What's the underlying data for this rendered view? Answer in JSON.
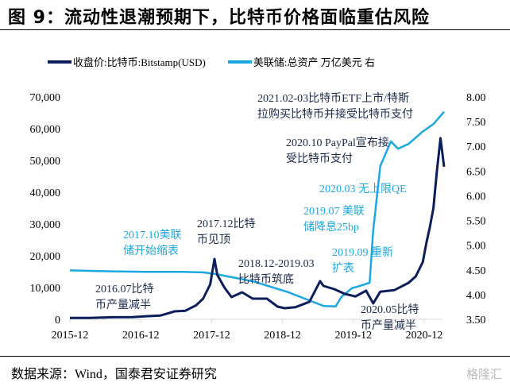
{
  "header": {
    "title": "图 9：流动性退潮预期下，比特币价格面临重估风险"
  },
  "footer": {
    "source": "数据来源：Wind，国泰君安证券研究",
    "watermark": "格隆汇"
  },
  "colors": {
    "btc": "#0B1E5B",
    "fed": "#1BA8E0",
    "grid": "#d9d9d9"
  },
  "chart_data": {
    "type": "line",
    "title": "图 9：流动性退潮预期下，比特币价格面临重估风险",
    "legend_position": "top",
    "x_ticks": [
      "2015-12",
      "2016-12",
      "2017-12",
      "2018-12",
      "2019-12",
      "2020-12"
    ],
    "y_left": {
      "range": [
        0,
        70000
      ],
      "ticks": [
        "0",
        "10,000",
        "20,000",
        "30,000",
        "40,000",
        "50,000",
        "60,000",
        "70,000"
      ]
    },
    "y_right": {
      "range": [
        3.5,
        8.0
      ],
      "ticks": [
        "3.50",
        "4.00",
        "4.50",
        "5.00",
        "5.50",
        "6.00",
        "6.50",
        "7.00",
        "7.50",
        "8.00"
      ]
    },
    "series": [
      {
        "name": "收盘价:比特币:Bitstamp(USD)",
        "axis": "left",
        "x": [
          2015.92,
          2016.2,
          2016.5,
          2016.8,
          2017.0,
          2017.2,
          2017.4,
          2017.55,
          2017.7,
          2017.8,
          2017.9,
          2017.96,
          2018.0,
          2018.1,
          2018.2,
          2018.35,
          2018.5,
          2018.7,
          2018.85,
          2018.95,
          2019.1,
          2019.3,
          2019.45,
          2019.5,
          2019.65,
          2019.8,
          2019.95,
          2020.1,
          2020.2,
          2020.3,
          2020.5,
          2020.7,
          2020.8,
          2020.9,
          2020.95,
          2021.0,
          2021.05,
          2021.1,
          2021.15,
          2021.2
        ],
        "values": [
          430,
          420,
          650,
          700,
          970,
          1200,
          2500,
          2700,
          4400,
          6500,
          11000,
          19000,
          14000,
          10000,
          7000,
          8500,
          6500,
          6500,
          4000,
          3500,
          3800,
          5500,
          12000,
          10500,
          9500,
          8000,
          7200,
          9000,
          5000,
          8700,
          9200,
          11500,
          13500,
          18000,
          24000,
          29000,
          35000,
          47000,
          57000,
          48000
        ]
      },
      {
        "name": "美联储:总资产 万亿美元 右",
        "axis": "right",
        "x": [
          2015.92,
          2016.5,
          2017.0,
          2017.5,
          2017.8,
          2018.0,
          2018.5,
          2019.0,
          2019.5,
          2019.67,
          2019.75,
          2019.9,
          2020.0,
          2020.15,
          2020.2,
          2020.3,
          2020.45,
          2020.55,
          2020.7,
          2020.9,
          2021.05,
          2021.2
        ],
        "values": [
          4.49,
          4.47,
          4.46,
          4.46,
          4.45,
          4.41,
          4.27,
          4.05,
          3.77,
          3.76,
          3.95,
          4.13,
          4.17,
          4.24,
          5.3,
          6.6,
          7.1,
          6.95,
          7.05,
          7.3,
          7.45,
          7.7
        ]
      }
    ],
    "annotations": [
      {
        "text": [
          "2016.07比特",
          "币产量减半"
        ],
        "color": "dark"
      },
      {
        "text": [
          "2017.10美联",
          "储开始缩表"
        ],
        "color": "light"
      },
      {
        "text": [
          "2017.12比特",
          "币见顶"
        ],
        "color": "dark"
      },
      {
        "text": [
          "2018.12-2019.03",
          "比特币筑底"
        ],
        "color": "dark"
      },
      {
        "text": [
          "2019.09 重新",
          "扩表"
        ],
        "color": "light"
      },
      {
        "text": [
          "2019.07 美联",
          "储降息25bp"
        ],
        "color": "light"
      },
      {
        "text": [
          "2020.03 无上限QE"
        ],
        "color": "light"
      },
      {
        "text": [
          "2020.10 PayPal宣布接",
          "受比特币支付"
        ],
        "color": "dark"
      },
      {
        "text": [
          "2021.02-03比特币ETF上市/特斯",
          "拉购买比特币并接受比特币支付"
        ],
        "color": "dark"
      },
      {
        "text": [
          "2020.05比特",
          "币产量减半"
        ],
        "color": "dark"
      }
    ]
  }
}
